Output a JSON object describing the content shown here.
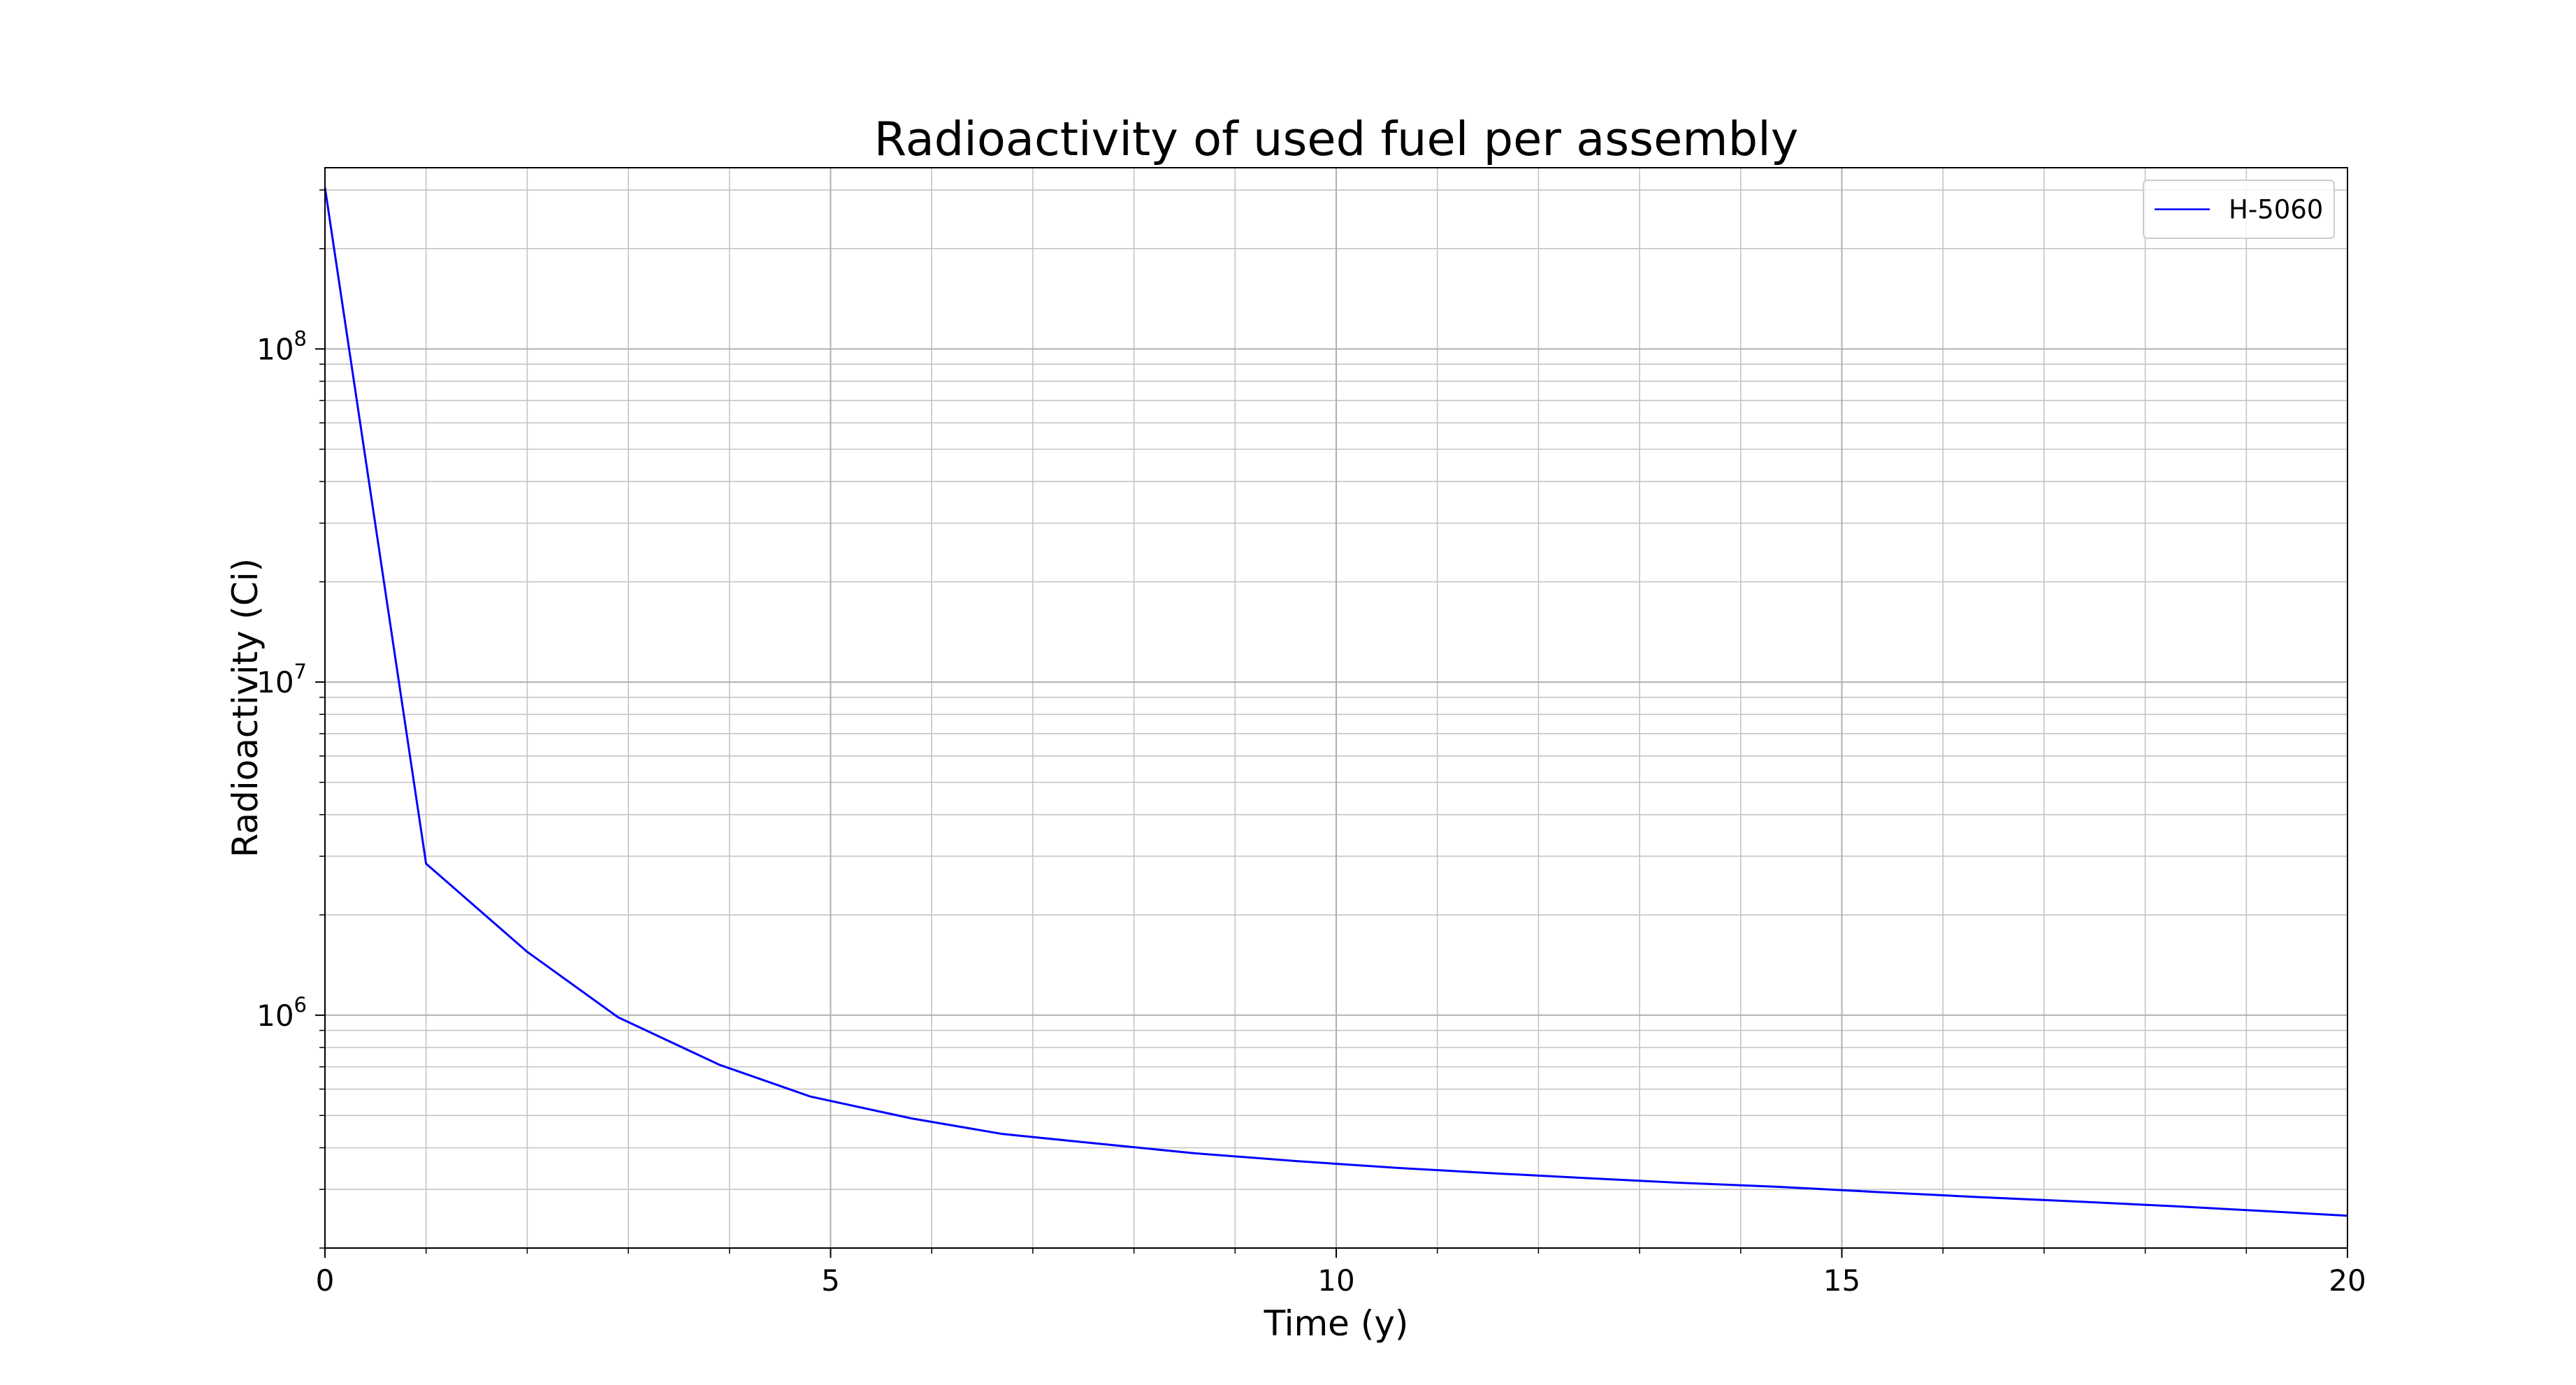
{
  "chart_data": {
    "type": "line",
    "title": "Radioactivity of used fuel per assembly",
    "xlabel": "Time (y)",
    "ylabel": "Radioactivity (Ci)",
    "xlim": [
      0,
      20
    ],
    "ylim": [
      200000,
      350000000
    ],
    "yscale": "log",
    "grid": "major and minor",
    "legend_position": "top-right",
    "x_ticks": [
      {
        "value": 0,
        "label": "0"
      },
      {
        "value": 5,
        "label": "5"
      },
      {
        "value": 10,
        "label": "10"
      },
      {
        "value": 15,
        "label": "15"
      },
      {
        "value": 20,
        "label": "20"
      }
    ],
    "y_ticks": [
      {
        "value": 1000000,
        "base": "10",
        "exp": "6"
      },
      {
        "value": 10000000,
        "base": "10",
        "exp": "7"
      },
      {
        "value": 100000000,
        "base": "10",
        "exp": "8"
      }
    ],
    "series": [
      {
        "name": "H-5060",
        "color": "#0000ff",
        "x": [
          0,
          1,
          2,
          2.9,
          3.9,
          4.8,
          5.8,
          6.7,
          7.7,
          8.6,
          9.6,
          10.6,
          11.5,
          12.5,
          13.4,
          14.4,
          15.4,
          16.3,
          17.3,
          18.3,
          19.2,
          20
        ],
        "y": [
          305000000,
          2850000,
          1550000,
          985000,
          710000,
          570000,
          490000,
          440000,
          410000,
          385000,
          365000,
          348000,
          336000,
          324000,
          314000,
          305000,
          294000,
          285000,
          276000,
          267000,
          258000,
          250000
        ]
      }
    ]
  }
}
